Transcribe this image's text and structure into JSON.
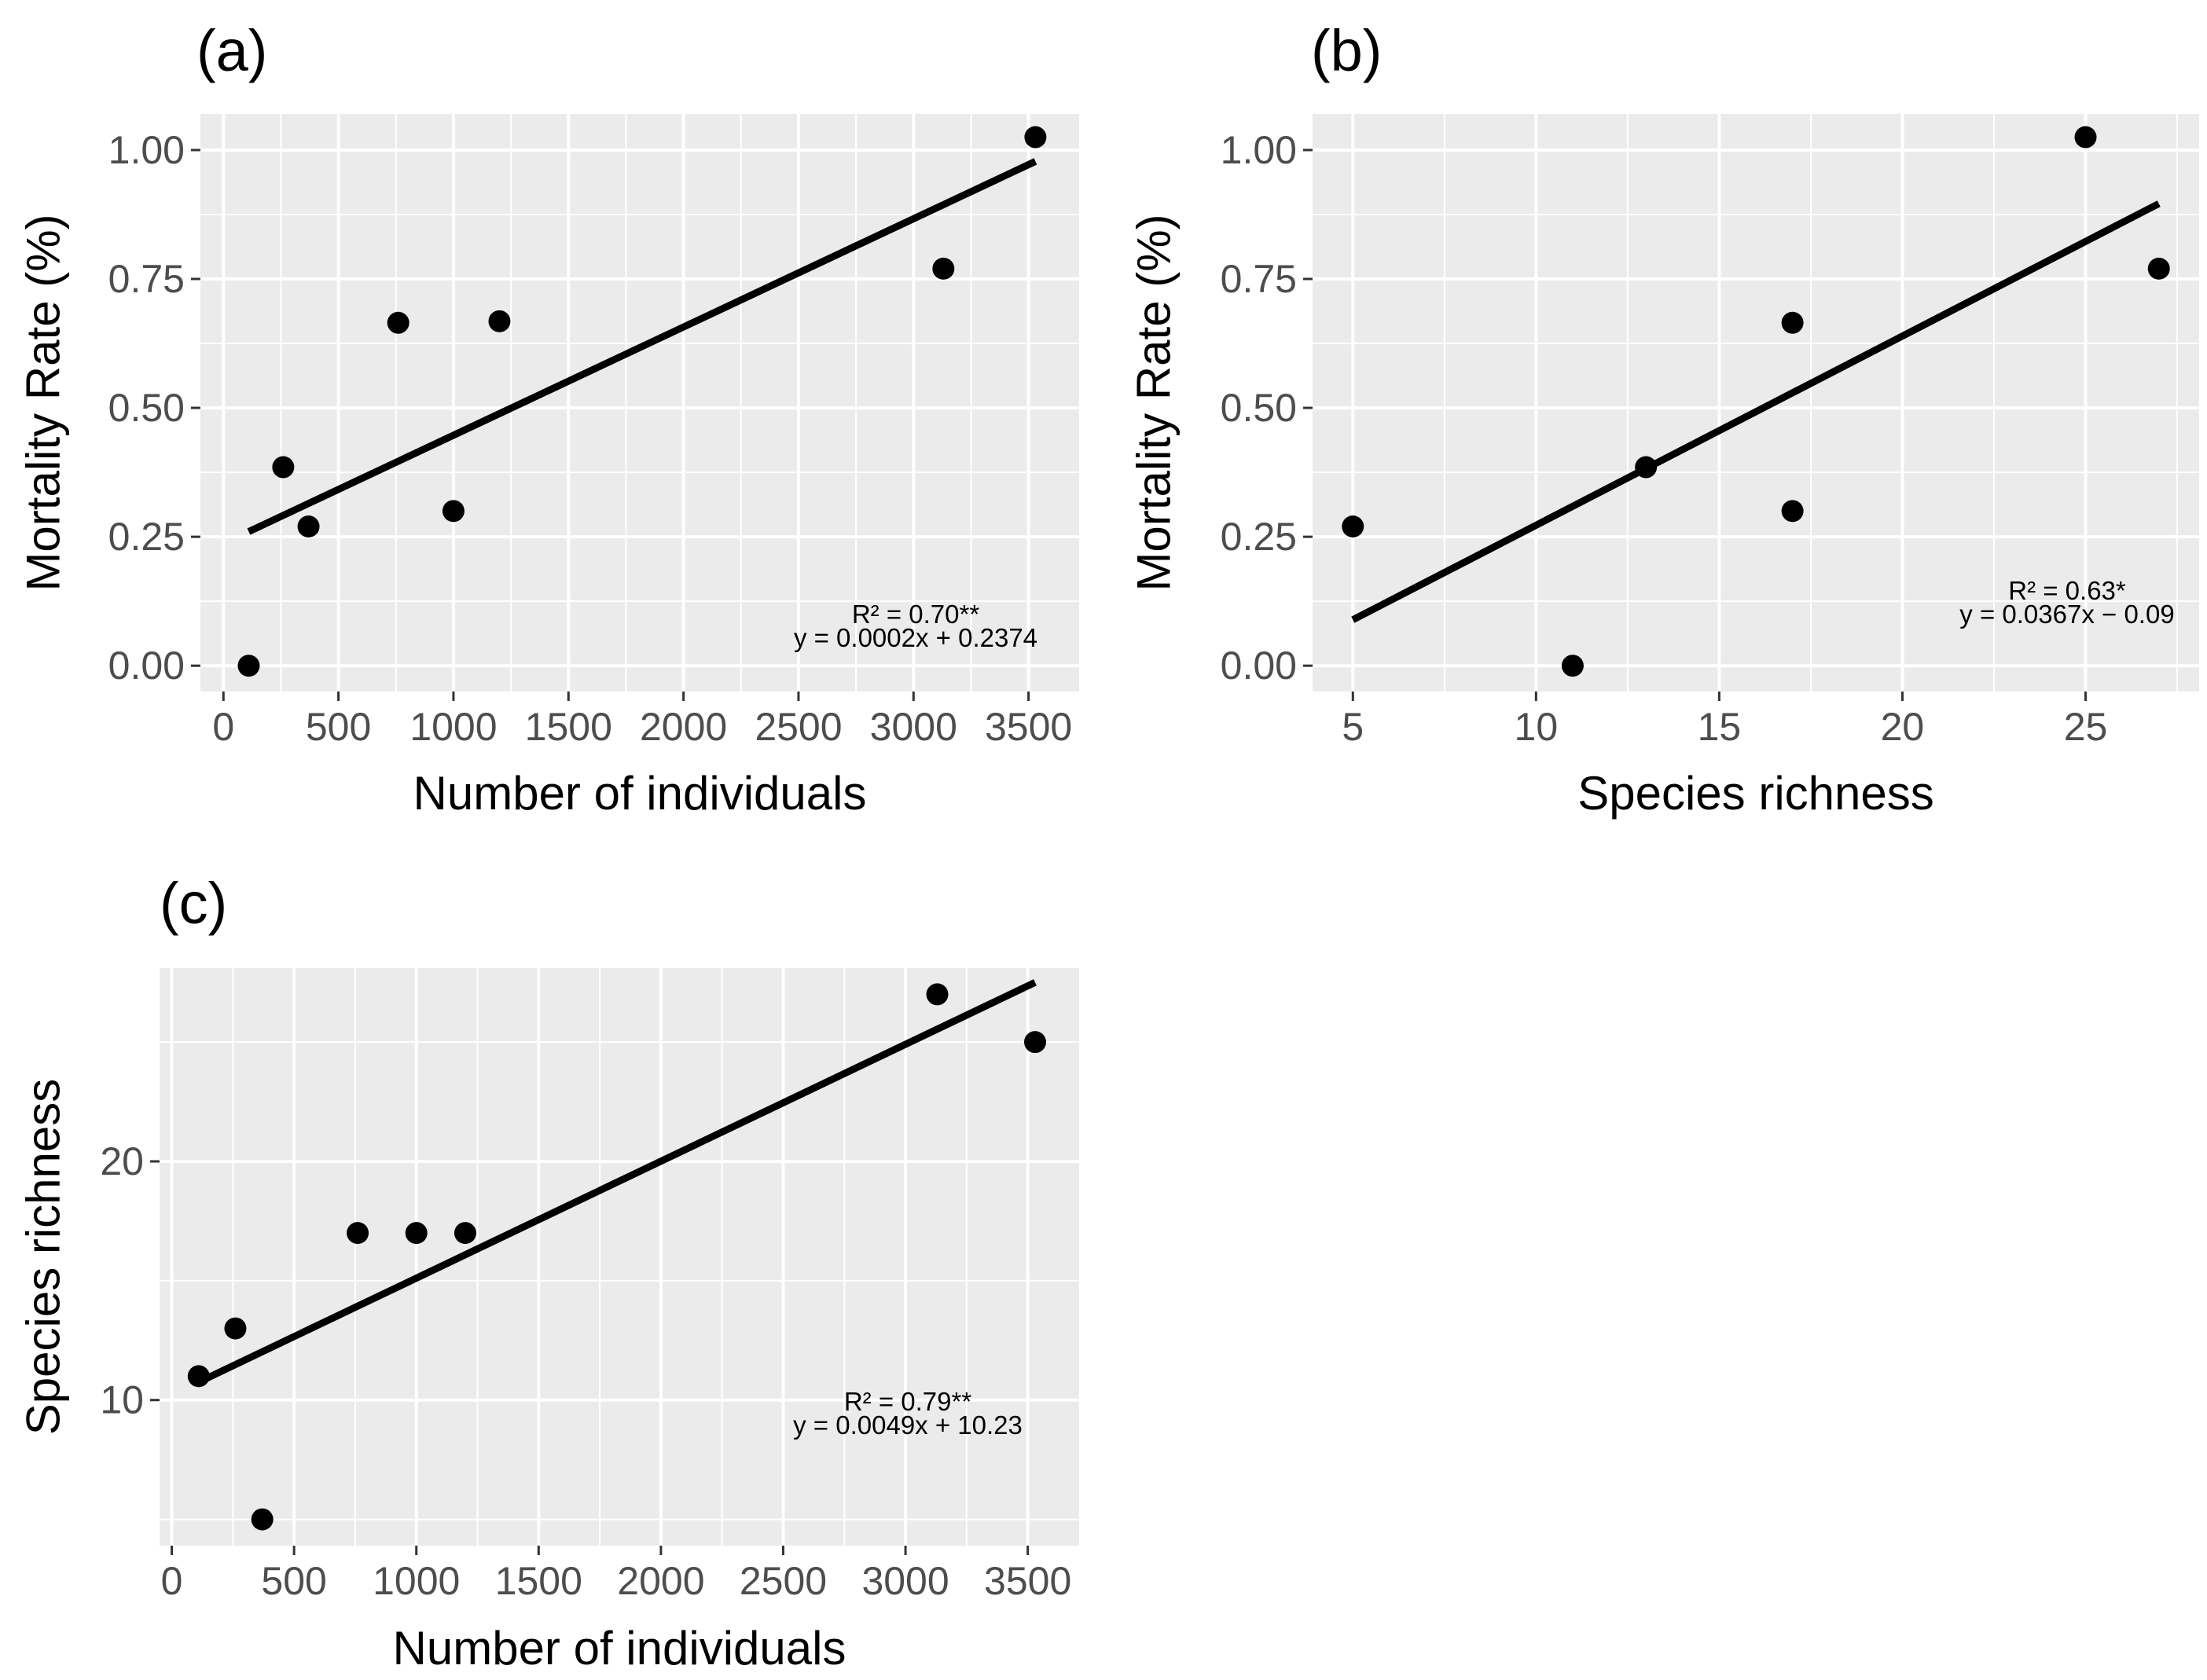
{
  "colors": {
    "panel_background": "#ebebeb",
    "grid": "#ffffff",
    "points": "#000000",
    "fit_line": "#000000",
    "tick_label": "#4d4d4d",
    "tick_mark": "#333333"
  },
  "chart_data": [
    {
      "id": "a",
      "type": "scatter",
      "panel_label": "(a)",
      "xlabel": "Number of individuals",
      "ylabel": "Mortality Rate (%)",
      "xlim": [
        -100,
        3720
      ],
      "ylim": [
        -0.05,
        1.07
      ],
      "xticks": [
        0,
        500,
        1000,
        1500,
        2000,
        2500,
        3000,
        3500
      ],
      "xtick_labels": [
        "0",
        "500",
        "1000",
        "1500",
        "2000",
        "2500",
        "3000",
        "3500"
      ],
      "yticks": [
        0,
        0.25,
        0.5,
        0.75,
        1.0
      ],
      "ytick_labels": [
        "0.00",
        "0.25",
        "0.50",
        "0.75",
        "1.00"
      ],
      "points": [
        {
          "x": 110,
          "y": 0.0
        },
        {
          "x": 260,
          "y": 0.385
        },
        {
          "x": 370,
          "y": 0.27
        },
        {
          "x": 760,
          "y": 0.665
        },
        {
          "x": 1000,
          "y": 0.3
        },
        {
          "x": 1200,
          "y": 0.668
        },
        {
          "x": 3130,
          "y": 0.77
        },
        {
          "x": 3530,
          "y": 1.025
        }
      ],
      "fit": {
        "x": [
          110,
          3530
        ],
        "y": [
          0.26,
          0.978
        ]
      },
      "annotations": [
        "R² = 0.70**",
        "y = 0.0002x + 0.2374"
      ]
    },
    {
      "id": "b",
      "type": "scatter",
      "panel_label": "(b)",
      "xlabel": "Species richness",
      "ylabel": "Mortality Rate (%)",
      "xlim": [
        3.9,
        28.1
      ],
      "ylim": [
        -0.05,
        1.07
      ],
      "xticks": [
        5,
        10,
        15,
        20,
        25
      ],
      "xtick_labels": [
        "5",
        "10",
        "15",
        "20",
        "25"
      ],
      "yticks": [
        0,
        0.25,
        0.5,
        0.75,
        1.0
      ],
      "ytick_labels": [
        "0.00",
        "0.25",
        "0.50",
        "0.75",
        "1.00"
      ],
      "points": [
        {
          "x": 5,
          "y": 0.27
        },
        {
          "x": 11,
          "y": 0.0
        },
        {
          "x": 13,
          "y": 0.385
        },
        {
          "x": 17,
          "y": 0.665
        },
        {
          "x": 17,
          "y": 0.3
        },
        {
          "x": 25,
          "y": 1.025
        },
        {
          "x": 27,
          "y": 0.77
        }
      ],
      "fit": {
        "x": [
          5,
          27
        ],
        "y": [
          0.089,
          0.896
        ]
      },
      "annotations": [
        "R² = 0.63*",
        "y = 0.0367x − 0.09"
      ]
    },
    {
      "id": "c",
      "type": "scatter",
      "panel_label": "(c)",
      "xlabel": "Number of individuals",
      "ylabel": "Species richness",
      "xlim": [
        -50,
        3710
      ],
      "ylim": [
        3.9,
        28.1
      ],
      "xticks": [
        0,
        500,
        1000,
        1500,
        2000,
        2500,
        3000,
        3500
      ],
      "xtick_labels": [
        "0",
        "500",
        "1000",
        "1500",
        "2000",
        "2500",
        "3000",
        "3500"
      ],
      "yticks": [
        10,
        20
      ],
      "ytick_labels": [
        "10",
        "20"
      ],
      "points": [
        {
          "x": 110,
          "y": 11
        },
        {
          "x": 260,
          "y": 13
        },
        {
          "x": 370,
          "y": 5
        },
        {
          "x": 760,
          "y": 17
        },
        {
          "x": 1000,
          "y": 17
        },
        {
          "x": 1200,
          "y": 17
        },
        {
          "x": 3130,
          "y": 27
        },
        {
          "x": 3530,
          "y": 25
        }
      ],
      "fit": {
        "x": [
          110,
          3530
        ],
        "y": [
          10.75,
          27.5
        ]
      },
      "annotations": [
        "R² = 0.79**",
        "y = 0.0049x + 10.23"
      ]
    }
  ]
}
